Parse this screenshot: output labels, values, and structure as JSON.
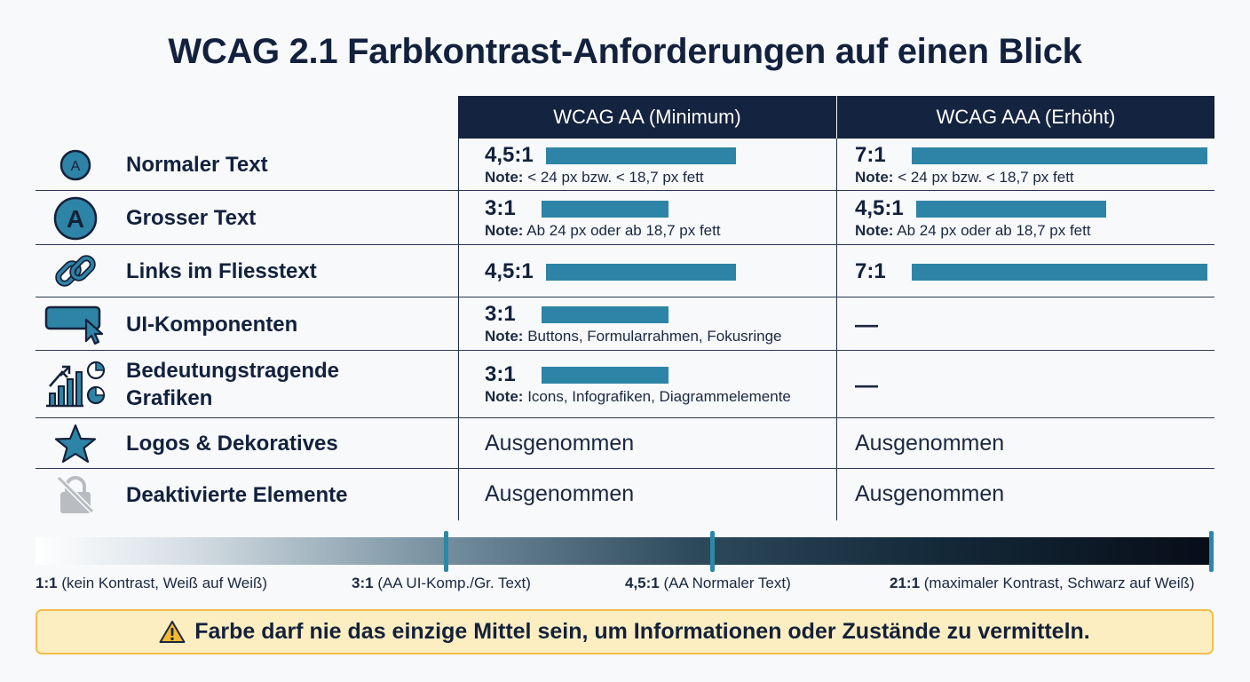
{
  "title": "WCAG 2.1 Farbkontrast-Anforderungen auf einen Blick",
  "columns": {
    "aa": "WCAG AA (Minimum)",
    "aaa": "WCAG AAA (Erhöht)"
  },
  "note_prefix": "Note:",
  "rows": [
    {
      "icon": "letter-a-small-icon",
      "label": "Normaler Text",
      "aa": {
        "ratio": "4,5:1",
        "value": 4.5,
        "note": "< 24 px bzw. < 18,7 px fett"
      },
      "aaa": {
        "ratio": "7:1",
        "value": 7,
        "note": "< 24 px bzw. < 18,7 px fett"
      }
    },
    {
      "icon": "letter-a-large-icon",
      "label": "Grosser Text",
      "aa": {
        "ratio": "3:1",
        "value": 3,
        "note": "Ab 24 px oder ab 18,7 px fett"
      },
      "aaa": {
        "ratio": "4,5:1",
        "value": 4.5,
        "note": "Ab 24 px oder ab 18,7 px fett"
      }
    },
    {
      "icon": "link-icon",
      "label": "Links im Fliesstext",
      "aa": {
        "ratio": "4,5:1",
        "value": 4.5
      },
      "aaa": {
        "ratio": "7:1",
        "value": 7
      }
    },
    {
      "icon": "ui-component-cursor-icon",
      "label": "UI-Komponenten",
      "aa": {
        "ratio": "3:1",
        "value": 3,
        "note": "Buttons, Formularrahmen, Fokusringe"
      },
      "aaa": {
        "text": "—"
      }
    },
    {
      "icon": "chart-icon",
      "label": "Bedeutungstragende Grafiken",
      "aa": {
        "ratio": "3:1",
        "value": 3,
        "note": "Icons, Infografiken, Diagrammelemente"
      },
      "aaa": {
        "text": "—"
      }
    },
    {
      "icon": "star-icon",
      "label": "Logos & Dekoratives",
      "aa": {
        "text": "Ausgenommen"
      },
      "aaa": {
        "text": "Ausgenommen"
      }
    },
    {
      "icon": "lock-disabled-icon",
      "label": "Deaktivierte Elemente",
      "aa": {
        "text": "Ausgenommen"
      },
      "aaa": {
        "text": "Ausgenommen"
      }
    }
  ],
  "scale": {
    "min": 1,
    "max": 21,
    "markers": [
      {
        "value": 1,
        "ratio": "1:1",
        "desc": "(kein Kontrast, Weiß auf Weiß)"
      },
      {
        "value": 3,
        "ratio": "3:1",
        "desc": "(AA UI-Komp./Gr. Text)"
      },
      {
        "value": 4.5,
        "ratio": "4,5:1",
        "desc": "(AA Normaler Text)"
      },
      {
        "value": 21,
        "ratio": "21:1",
        "desc": "(maximaler Kontrast, Schwarz auf Weiß)"
      }
    ]
  },
  "warning": {
    "icon": "warning-icon",
    "text": "Farbe darf nie das einzige Mittel sein, um Informationen oder Zustände zu vermitteln."
  },
  "colors": {
    "header": "#14233f",
    "bar": "#2e84a6",
    "tick": "#2c87a8",
    "warning_bg": "#fdeec2",
    "warning_border": "#f3bd4c"
  }
}
